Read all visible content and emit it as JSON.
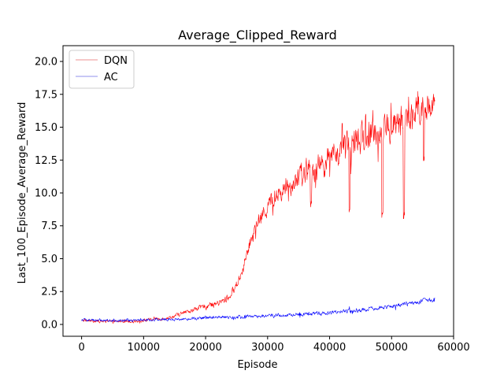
{
  "chart_data": {
    "type": "line",
    "title": "Average_Clipped_Reward",
    "xlabel": "Episode",
    "ylabel": "Last_100_Episode_Average_Reward",
    "xlim": [
      -3000,
      60000
    ],
    "ylim": [
      -0.9,
      21.2
    ],
    "xticks": [
      0,
      10000,
      20000,
      30000,
      40000,
      50000,
      60000
    ],
    "xtick_labels": [
      "0",
      "10000",
      "20000",
      "30000",
      "40000",
      "50000",
      "60000"
    ],
    "yticks": [
      0,
      2.5,
      5,
      7.5,
      10,
      12.5,
      15,
      17.5,
      20
    ],
    "ytick_labels": [
      "0.0",
      "2.5",
      "5.0",
      "7.5",
      "10.0",
      "12.5",
      "15.0",
      "17.5",
      "20.0"
    ],
    "legend_position": "top-left",
    "series": [
      {
        "name": "DQN",
        "color": "#ff0000",
        "legend_color": "#f4b6b6",
        "trend": {
          "x": [
            0,
            5000,
            10000,
            14000,
            16000,
            18000,
            20000,
            22000,
            23000,
            24000,
            25000,
            26000,
            27000,
            28000,
            29000,
            30000,
            31000,
            32000,
            33000,
            34000,
            36000,
            38000,
            40000,
            42000,
            44000,
            46000,
            48000,
            50000,
            52000,
            54000,
            56000,
            57000
          ],
          "y": [
            0.3,
            0.2,
            0.3,
            0.5,
            0.8,
            1.1,
            1.4,
            1.6,
            1.8,
            2.2,
            3.0,
            4.2,
            6.0,
            7.2,
            8.2,
            9.0,
            9.5,
            10.0,
            10.4,
            10.8,
            11.5,
            12.0,
            12.6,
            13.2,
            13.8,
            14.3,
            14.7,
            15.0,
            15.5,
            16.2,
            16.8,
            17.0
          ]
        },
        "noise": {
          "x": [
            0,
            14000,
            20000,
            25000,
            30000,
            40000,
            50000,
            57000
          ],
          "amplitude": [
            0.15,
            0.2,
            0.3,
            0.5,
            1.0,
            1.6,
            1.9,
            1.8
          ]
        },
        "dips": [
          {
            "x": 37000,
            "y": 8.9
          },
          {
            "x": 43200,
            "y": 8.3
          },
          {
            "x": 48500,
            "y": 8.0
          },
          {
            "x": 52000,
            "y": 8.0
          },
          {
            "x": 55200,
            "y": 12.2
          }
        ]
      },
      {
        "name": "AC",
        "color": "#0000ff",
        "legend_color": "#b6b6f4",
        "trend": {
          "x": [
            0,
            5000,
            10000,
            15000,
            20000,
            25000,
            30000,
            35000,
            40000,
            45000,
            50000,
            53000,
            55000,
            57000
          ],
          "y": [
            0.35,
            0.3,
            0.35,
            0.4,
            0.5,
            0.55,
            0.65,
            0.75,
            0.9,
            1.1,
            1.4,
            1.6,
            1.8,
            1.9
          ]
        },
        "noise": {
          "x": [
            0,
            57000
          ],
          "amplitude": [
            0.15,
            0.25
          ]
        },
        "dips": []
      }
    ]
  }
}
